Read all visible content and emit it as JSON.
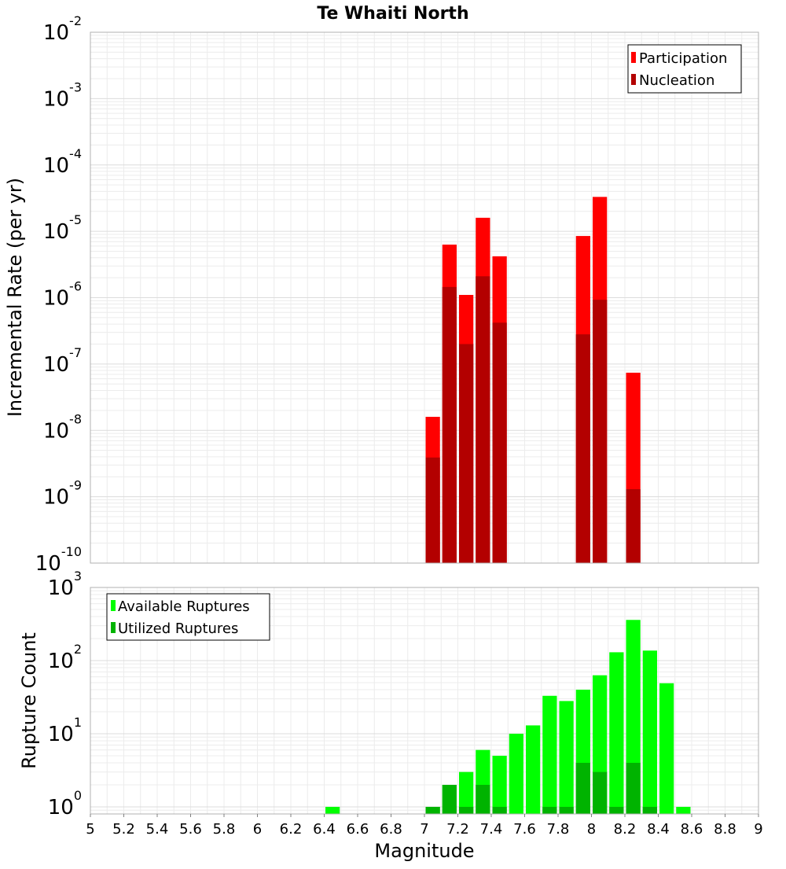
{
  "chart_data": [
    {
      "type": "bar",
      "title": "Te Whaiti North",
      "ylabel": "Incremental Rate (per yr)",
      "xlabel": "",
      "xlim": [
        5,
        9
      ],
      "ylim": [
        1e-10,
        0.01
      ],
      "yscale": "log",
      "grid": true,
      "legend_position": "top-right",
      "bar_width": 0.1,
      "x": [
        7.05,
        7.15,
        7.25,
        7.35,
        7.45,
        7.95,
        8.05,
        8.25
      ],
      "series": [
        {
          "name": "Participation",
          "color": "#ff0000",
          "values": [
            1.6e-08,
            6.3e-06,
            1.1e-06,
            1.6e-05,
            4.2e-06,
            8.5e-06,
            3.3e-05,
            7.4e-08
          ]
        },
        {
          "name": "Nucleation",
          "color": "#b30000",
          "values": [
            3.9e-09,
            1.45e-06,
            2e-07,
            2.1e-06,
            4.2e-07,
            2.8e-07,
            9.3e-07,
            1.3e-09
          ]
        }
      ],
      "ytick_exponents": [
        -10,
        -9,
        -8,
        -7,
        -6,
        -5,
        -4,
        -3,
        -2
      ]
    },
    {
      "type": "bar",
      "title": "",
      "ylabel": "Rupture Count",
      "xlabel": "Magnitude",
      "xlim": [
        5,
        9
      ],
      "ylim": [
        0.8,
        1000
      ],
      "yscale": "log",
      "grid": true,
      "legend_position": "top-left",
      "bar_width": 0.1,
      "x": [
        6.45,
        7.05,
        7.15,
        7.25,
        7.35,
        7.45,
        7.55,
        7.65,
        7.75,
        7.85,
        7.95,
        8.05,
        8.15,
        8.25,
        8.35,
        8.45,
        8.55
      ],
      "series": [
        {
          "name": "Available Ruptures",
          "color": "#00ff00",
          "values": [
            1,
            1,
            2,
            3,
            6,
            5,
            10,
            13,
            33,
            28,
            40,
            63,
            130,
            360,
            137,
            49,
            1
          ]
        },
        {
          "name": "Utilized Ruptures",
          "color": "#00b300",
          "values": [
            0,
            1,
            2,
            1,
            2,
            1,
            0,
            0,
            1,
            1,
            4,
            3,
            1,
            4,
            1,
            0,
            0
          ]
        }
      ],
      "ytick_exponents": [
        0,
        1,
        2,
        3
      ],
      "xticks": [
        "5",
        "5.2",
        "5.4",
        "5.6",
        "5.8",
        "6",
        "6.2",
        "6.4",
        "6.6",
        "6.8",
        "7",
        "7.2",
        "7.4",
        "7.6",
        "7.8",
        "8",
        "8.2",
        "8.4",
        "8.6",
        "8.8",
        "9"
      ]
    }
  ]
}
